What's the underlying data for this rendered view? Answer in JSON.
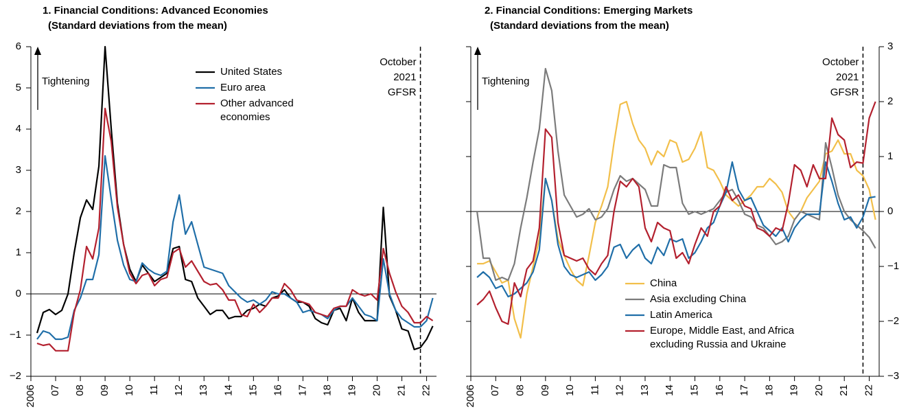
{
  "chart_data": [
    {
      "type": "line",
      "title": "1. Financial Conditions: Advanced Economies",
      "subtitle": "(Standard deviations from the mean)",
      "annotations": [
        "Tightening"
      ],
      "vline": {
        "x": 2021.75,
        "label": [
          "October",
          "2021",
          "GFSR"
        ]
      },
      "legend": "upper center",
      "xlim": [
        2006,
        2022.4
      ],
      "xticks": [
        2006,
        {
          "value": 2007,
          "label": "07"
        },
        {
          "value": 2008,
          "label": "08"
        },
        {
          "value": 2009,
          "label": "09"
        },
        {
          "value": 2010,
          "label": "10"
        },
        {
          "value": 2011,
          "label": "11"
        },
        {
          "value": 2012,
          "label": "12"
        },
        {
          "value": 2013,
          "label": "13"
        },
        {
          "value": 2014,
          "label": "14"
        },
        {
          "value": 2015,
          "label": "15"
        },
        {
          "value": 2016,
          "label": "16"
        },
        {
          "value": 2017,
          "label": "17"
        },
        {
          "value": 2018,
          "label": "18"
        },
        {
          "value": 2019,
          "label": "19"
        },
        {
          "value": 2020,
          "label": "20"
        },
        {
          "value": 2021,
          "label": "21"
        },
        {
          "value": 2022,
          "label": "22"
        }
      ],
      "ylim": [
        -2,
        6
      ],
      "yticks": [
        {
          "value": -2,
          "label": "−2"
        },
        {
          "value": -1,
          "label": "−1"
        },
        0,
        1,
        2,
        3,
        4,
        5,
        6
      ],
      "x": [
        2006.25,
        2006.5,
        2006.75,
        2007,
        2007.25,
        2007.5,
        2007.75,
        2008,
        2008.25,
        2008.5,
        2008.75,
        2009,
        2009.25,
        2009.5,
        2009.75,
        2010,
        2010.25,
        2010.5,
        2010.75,
        2011,
        2011.25,
        2011.5,
        2011.75,
        2012,
        2012.25,
        2012.5,
        2012.75,
        2013,
        2013.25,
        2013.5,
        2013.75,
        2014,
        2014.25,
        2014.5,
        2014.75,
        2015,
        2015.25,
        2015.5,
        2015.75,
        2016,
        2016.25,
        2016.5,
        2016.75,
        2017,
        2017.25,
        2017.5,
        2017.75,
        2018,
        2018.25,
        2018.5,
        2018.75,
        2019,
        2019.25,
        2019.5,
        2019.75,
        2020,
        2020.25,
        2020.5,
        2020.75,
        2021,
        2021.25,
        2021.5,
        2021.75,
        2022,
        2022.25
      ],
      "series": [
        {
          "name": "United States",
          "color": "#000000",
          "values": [
            -0.95,
            -0.45,
            -0.38,
            -0.5,
            -0.4,
            0,
            1.0,
            1.85,
            2.28,
            2.05,
            3.1,
            6.0,
            4.0,
            2.2,
            1.2,
            0.6,
            0.3,
            0.7,
            0.5,
            0.3,
            0.4,
            0.5,
            1.1,
            1.15,
            0.35,
            0.3,
            -0.1,
            -0.3,
            -0.5,
            -0.4,
            -0.4,
            -0.6,
            -0.55,
            -0.55,
            -0.4,
            -0.35,
            -0.25,
            -0.3,
            -0.1,
            -0.05,
            0.1,
            -0.1,
            -0.2,
            -0.2,
            -0.3,
            -0.6,
            -0.7,
            -0.75,
            -0.4,
            -0.35,
            -0.65,
            -0.1,
            -0.45,
            -0.65,
            -0.65,
            -0.65,
            2.1,
            -0.05,
            -0.4,
            -0.85,
            -0.9,
            -1.35,
            -1.3,
            -1.1,
            -0.78
          ]
        },
        {
          "name": "Euro area",
          "color": "#1f6ea8",
          "values": [
            -1.1,
            -0.9,
            -0.95,
            -1.1,
            -1.1,
            -1.05,
            -0.4,
            -0.1,
            0.35,
            0.35,
            0.95,
            3.35,
            2.3,
            1.3,
            0.7,
            0.35,
            0.3,
            0.75,
            0.6,
            0.5,
            0.45,
            0.55,
            1.75,
            2.4,
            1.45,
            1.75,
            1.2,
            0.65,
            0.6,
            0.55,
            0.5,
            0.2,
            0.05,
            -0.1,
            -0.2,
            -0.15,
            -0.25,
            -0.15,
            0.05,
            0,
            0,
            -0.1,
            -0.2,
            -0.45,
            -0.4,
            -0.45,
            -0.5,
            -0.6,
            -0.4,
            -0.3,
            -0.3,
            -0.1,
            -0.3,
            -0.5,
            -0.55,
            -0.65,
            0.85,
            0,
            -0.4,
            -0.6,
            -0.7,
            -0.8,
            -0.8,
            -0.65,
            -0.1
          ]
        },
        {
          "name": "Other advanced economies",
          "color": "#b3202e",
          "values": [
            -1.2,
            -1.25,
            -1.22,
            -1.38,
            -1.38,
            -1.38,
            -0.45,
            0.1,
            1.15,
            0.85,
            1.6,
            4.5,
            3.7,
            2.1,
            1.2,
            0.5,
            0.25,
            0.45,
            0.5,
            0.2,
            0.35,
            0.4,
            1.0,
            1.1,
            0.65,
            0.8,
            0.55,
            0.3,
            0.22,
            0.25,
            0.1,
            -0.15,
            -0.15,
            -0.5,
            -0.55,
            -0.25,
            -0.45,
            -0.3,
            -0.1,
            -0.1,
            0.25,
            0.1,
            -0.15,
            -0.2,
            -0.25,
            -0.45,
            -0.5,
            -0.55,
            -0.35,
            -0.3,
            -0.3,
            0.1,
            0,
            -0.05,
            0,
            -0.15,
            1.1,
            0.5,
            0.05,
            -0.3,
            -0.45,
            -0.7,
            -0.7,
            -0.55,
            -0.65
          ]
        }
      ]
    },
    {
      "type": "line",
      "title": "2. Financial Conditions: Emerging Markets",
      "subtitle": "(Standard deviations from the mean)",
      "annotations": [
        "Tightening"
      ],
      "vline": {
        "x": 2021.75,
        "label": [
          "October",
          "2021",
          "GFSR"
        ]
      },
      "legend": "lower center",
      "xlim": [
        2006,
        2022.4
      ],
      "xticks": [
        2006,
        {
          "value": 2007,
          "label": "07"
        },
        {
          "value": 2008,
          "label": "08"
        },
        {
          "value": 2009,
          "label": "09"
        },
        {
          "value": 2010,
          "label": "10"
        },
        {
          "value": 2011,
          "label": "11"
        },
        {
          "value": 2012,
          "label": "12"
        },
        {
          "value": 2013,
          "label": "13"
        },
        {
          "value": 2014,
          "label": "14"
        },
        {
          "value": 2015,
          "label": "15"
        },
        {
          "value": 2016,
          "label": "16"
        },
        {
          "value": 2017,
          "label": "17"
        },
        {
          "value": 2018,
          "label": "18"
        },
        {
          "value": 2019,
          "label": "19"
        },
        {
          "value": 2020,
          "label": "20"
        },
        {
          "value": 2021,
          "label": "21"
        },
        {
          "value": 2022,
          "label": "22"
        }
      ],
      "ylim": [
        -3,
        3
      ],
      "yticks": [
        {
          "value": -3,
          "label": "−3"
        },
        {
          "value": -2,
          "label": "−2"
        },
        {
          "value": -1,
          "label": "−1"
        },
        0,
        1,
        2,
        3
      ],
      "x": [
        2006.25,
        2006.5,
        2006.75,
        2007,
        2007.25,
        2007.5,
        2007.75,
        2008,
        2008.25,
        2008.5,
        2008.75,
        2009,
        2009.25,
        2009.5,
        2009.75,
        2010,
        2010.25,
        2010.5,
        2010.75,
        2011,
        2011.25,
        2011.5,
        2011.75,
        2012,
        2012.25,
        2012.5,
        2012.75,
        2013,
        2013.25,
        2013.5,
        2013.75,
        2014,
        2014.25,
        2014.5,
        2014.75,
        2015,
        2015.25,
        2015.5,
        2015.75,
        2016,
        2016.25,
        2016.5,
        2016.75,
        2017,
        2017.25,
        2017.5,
        2017.75,
        2018,
        2018.25,
        2018.5,
        2018.75,
        2019,
        2019.25,
        2019.5,
        2019.75,
        2020,
        2020.25,
        2020.5,
        2020.75,
        2021,
        2021.25,
        2021.5,
        2021.75,
        2022,
        2022.25
      ],
      "series": [
        {
          "name": "China",
          "color": "#f2bf4a",
          "values": [
            -0.95,
            -0.95,
            -0.9,
            -1.1,
            -1.3,
            -1.25,
            -1.95,
            -2.3,
            -1.5,
            -1.0,
            -0.5,
            0.6,
            0.2,
            -0.5,
            -0.8,
            -1.05,
            -1.25,
            -1.35,
            -0.8,
            -0.2,
            0.1,
            0.45,
            1.25,
            1.95,
            2.0,
            1.6,
            1.3,
            1.15,
            0.85,
            1.1,
            1.0,
            1.3,
            1.25,
            0.9,
            0.95,
            1.15,
            1.45,
            0.8,
            0.75,
            0.55,
            0.3,
            0.2,
            0.1,
            0.2,
            0.3,
            0.45,
            0.45,
            0.6,
            0.5,
            0.35,
            0,
            -0.15,
            0,
            0.25,
            0.4,
            0.55,
            1.05,
            1.1,
            1.3,
            1.05,
            1.05,
            0.75,
            0.65,
            0.4,
            -0.15
          ]
        },
        {
          "name": "Asia excluding China",
          "color": "#7b7b7b",
          "values": [
            0,
            -0.85,
            -0.85,
            -1.25,
            -1.2,
            -1.25,
            -0.95,
            -0.3,
            0.25,
            0.9,
            1.5,
            2.6,
            2.2,
            1.1,
            0.3,
            0.1,
            -0.1,
            -0.05,
            0.05,
            -0.15,
            -0.1,
            0.05,
            0.4,
            0.65,
            0.55,
            0.6,
            0.5,
            0.4,
            0.1,
            0.1,
            0.85,
            0.8,
            0.8,
            0.15,
            -0.05,
            0,
            -0.05,
            0,
            0.05,
            0.2,
            0.35,
            0.4,
            0.2,
            -0.05,
            -0.1,
            -0.25,
            -0.3,
            -0.45,
            -0.6,
            -0.55,
            -0.45,
            -0.15,
            0,
            -0.05,
            -0.1,
            -0.15,
            1.25,
            0.8,
            0.3,
            0,
            -0.15,
            -0.25,
            -0.35,
            -0.47,
            -0.67
          ]
        },
        {
          "name": "Latin America",
          "color": "#1f6ea8",
          "values": [
            -1.2,
            -1.1,
            -1.2,
            -1.4,
            -1.35,
            -1.55,
            -1.5,
            -1.4,
            -1.3,
            -1.1,
            -0.7,
            0.6,
            0.2,
            -0.6,
            -1.0,
            -1.15,
            -1.2,
            -1.15,
            -1.1,
            -1.25,
            -1.15,
            -1.0,
            -0.65,
            -0.6,
            -0.85,
            -0.7,
            -0.6,
            -0.85,
            -0.95,
            -0.65,
            -0.8,
            -0.5,
            -0.55,
            -0.5,
            -0.85,
            -0.75,
            -0.55,
            -0.3,
            -0.2,
            0.1,
            0.35,
            0.9,
            0.4,
            0.2,
            0.25,
            0,
            -0.25,
            -0.35,
            -0.45,
            -0.3,
            -0.55,
            -0.3,
            -0.15,
            -0.05,
            -0.05,
            -0.05,
            0.9,
            0.55,
            0.15,
            -0.15,
            -0.1,
            -0.3,
            -0.1,
            0.25,
            0.27
          ]
        },
        {
          "name": "Europe, Middle East, and Africa excluding Russia and Ukraine",
          "color": "#b3202e",
          "values": [
            -1.7,
            -1.6,
            -1.45,
            -1.75,
            -2.0,
            -2.05,
            -1.3,
            -1.55,
            -1.05,
            -0.9,
            -0.3,
            1.5,
            1.35,
            -0.2,
            -0.8,
            -0.85,
            -0.9,
            -0.85,
            -1.05,
            -1.15,
            -0.95,
            -0.8,
            0,
            0.55,
            0.45,
            0.6,
            0.45,
            -0.3,
            -0.55,
            -0.2,
            -0.3,
            -0.35,
            -0.85,
            -0.75,
            -0.95,
            -0.6,
            -0.3,
            -0.45,
            0,
            0.1,
            0.45,
            0.2,
            0.3,
            0.1,
            0.05,
            -0.3,
            -0.35,
            -0.45,
            -0.3,
            -0.35,
            0.15,
            0.85,
            0.75,
            0.45,
            0.85,
            0.6,
            0.6,
            1.7,
            1.4,
            1.3,
            0.8,
            0.9,
            0.88,
            1.7,
            2.0
          ]
        }
      ]
    }
  ]
}
